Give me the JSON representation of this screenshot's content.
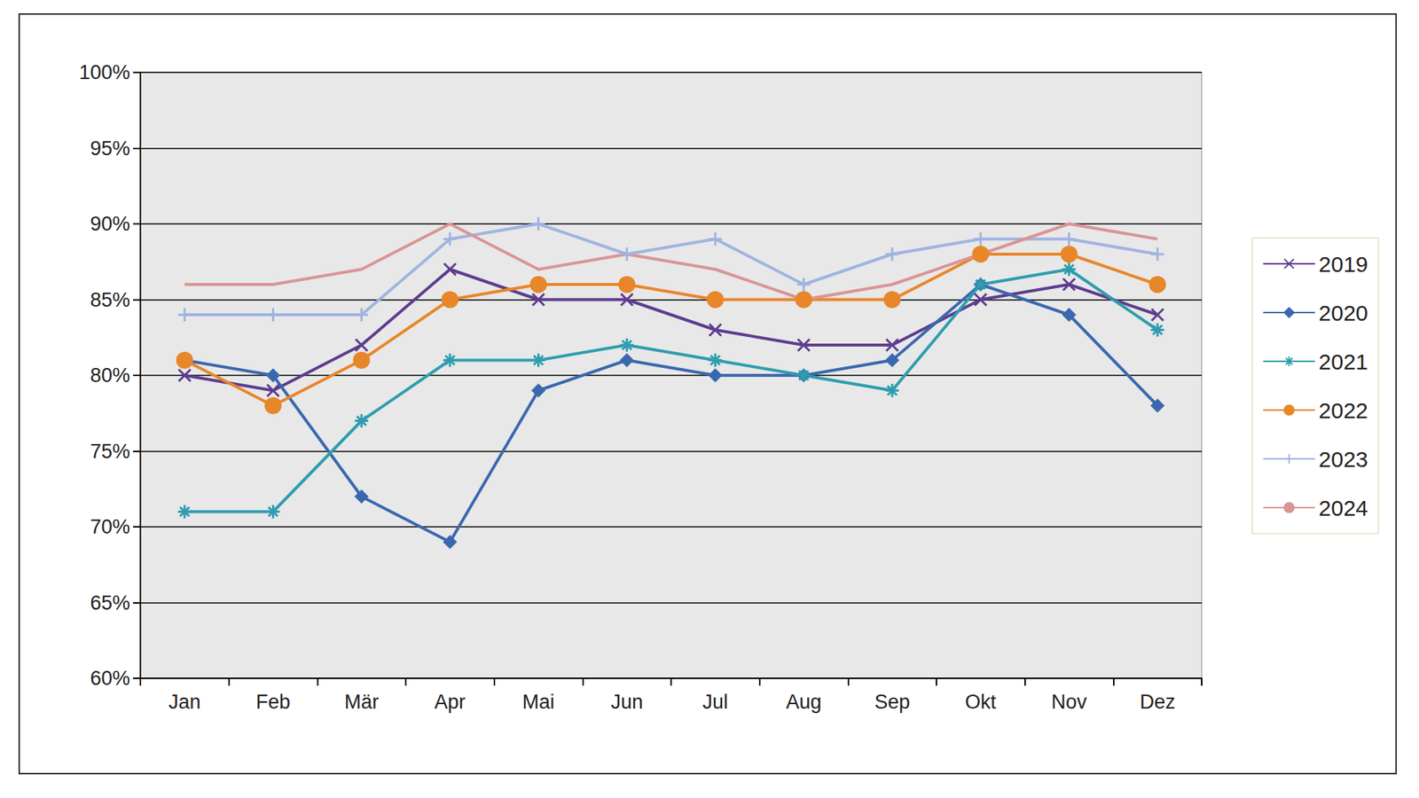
{
  "chart_data": {
    "type": "line",
    "categories": [
      "Jan",
      "Feb",
      "Mär",
      "Apr",
      "Mai",
      "Jun",
      "Jul",
      "Aug",
      "Sep",
      "Okt",
      "Nov",
      "Dez"
    ],
    "series": [
      {
        "name": "2019",
        "color": "#5E3C8E",
        "marker": "x",
        "values": [
          80,
          79,
          82,
          87,
          85,
          85,
          83,
          82,
          82,
          85,
          86,
          84
        ]
      },
      {
        "name": "2020",
        "color": "#3A68AE",
        "marker": "diamond",
        "values": [
          81,
          80,
          72,
          69,
          79,
          81,
          80,
          80,
          81,
          86,
          84,
          78
        ]
      },
      {
        "name": "2021",
        "color": "#2E9DAE",
        "marker": "star",
        "values": [
          71,
          71,
          77,
          81,
          81,
          82,
          81,
          80,
          79,
          86,
          87,
          83
        ]
      },
      {
        "name": "2022",
        "color": "#E8862A",
        "marker": "circle",
        "values": [
          81,
          78,
          81,
          85,
          86,
          86,
          85,
          85,
          85,
          88,
          88,
          86
        ]
      },
      {
        "name": "2023",
        "color": "#9FB4E0",
        "marker": "plus",
        "values": [
          84,
          84,
          84,
          89,
          90,
          88,
          89,
          86,
          88,
          89,
          89,
          88
        ]
      },
      {
        "name": "2024",
        "color": "#D99594",
        "marker": "none",
        "values": [
          86,
          86,
          87,
          90,
          87,
          88,
          87,
          85,
          86,
          88,
          90,
          89
        ]
      }
    ],
    "ylim": [
      60,
      100
    ],
    "yticks": [
      {
        "value": 60,
        "label": "60%"
      },
      {
        "value": 65,
        "label": "65%"
      },
      {
        "value": 70,
        "label": "70%"
      },
      {
        "value": 75,
        "label": "75%"
      },
      {
        "value": 80,
        "label": "80%"
      },
      {
        "value": 85,
        "label": "85%"
      },
      {
        "value": 90,
        "label": "90%"
      },
      {
        "value": 95,
        "label": "95%"
      },
      {
        "value": 100,
        "label": "100%"
      }
    ],
    "grid": true,
    "legend": "right"
  }
}
